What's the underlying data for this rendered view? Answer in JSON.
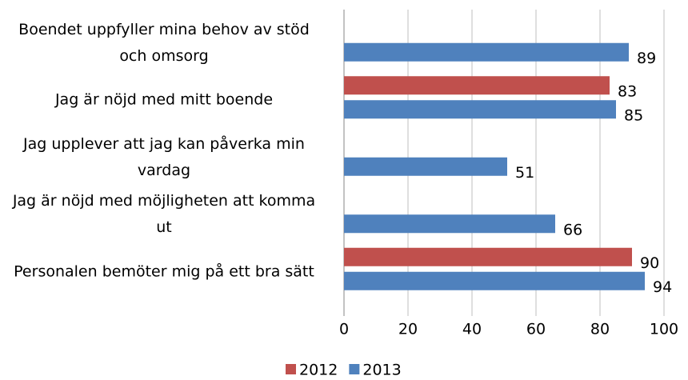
{
  "chart_data": {
    "type": "hbar",
    "categories": [
      "Boendet uppfyller mina behov av stöd och omsorg",
      "Jag är nöjd med mitt boende",
      "Jag upplever att jag kan påverka min vardag",
      "Jag är nöjd med möjligheten att komma ut",
      "Personalen bemöter mig på ett bra sätt"
    ],
    "series": [
      {
        "name": "2012",
        "color": "#c0504d",
        "values": [
          null,
          83,
          null,
          null,
          90
        ]
      },
      {
        "name": "2013",
        "color": "#4f81bd",
        "values": [
          89,
          85,
          51,
          66,
          94
        ]
      }
    ],
    "xlim": [
      0,
      100
    ],
    "xticks": [
      0,
      20,
      40,
      60,
      80,
      100
    ],
    "grid": true,
    "legend": "bottom"
  }
}
